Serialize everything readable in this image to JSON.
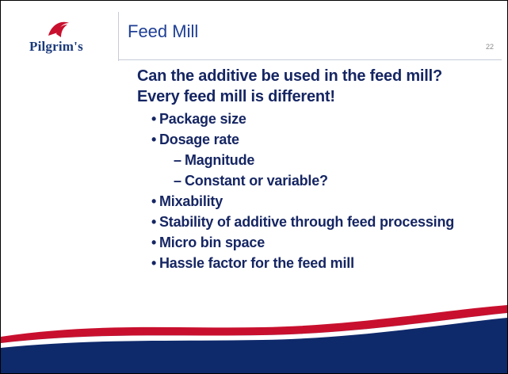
{
  "header": {
    "logo": "Pilgrim's",
    "title": "Feed Mill",
    "page_number": "22"
  },
  "body": {
    "intro": "Can the additive be used in the feed mill? Every feed mill is different!",
    "items": [
      {
        "text": "Package size",
        "level": 1
      },
      {
        "text": "Dosage rate",
        "level": 1
      },
      {
        "text": "Magnitude",
        "level": 2
      },
      {
        "text": "Constant or variable?",
        "level": 2
      },
      {
        "text": "Mixability",
        "level": 1
      },
      {
        "text": "Stability of additive through feed processing",
        "level": 1
      },
      {
        "text": "Micro bin space",
        "level": 1
      },
      {
        "text": "Hassle factor for the feed mill",
        "level": 1
      }
    ]
  }
}
